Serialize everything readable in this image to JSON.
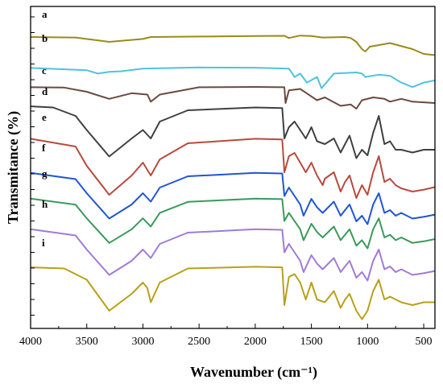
{
  "chart_data": {
    "type": "line",
    "title": "",
    "xlabel": "Wavenumber (cm⁻¹)",
    "ylabel": "Transmitance (%)",
    "xlim": [
      4000,
      400
    ],
    "x_reversed": true,
    "x_ticks": [
      "4000",
      "3500",
      "3000",
      "2500",
      "2000",
      "1500",
      "1000",
      "500"
    ],
    "y_tick_labels_shown": false,
    "stacked_offset": true,
    "grid": false,
    "series": [
      {
        "name": "a",
        "color": "#9a8a1a",
        "points": [
          [
            4000,
            0.8
          ],
          [
            3600,
            0.78
          ],
          [
            3300,
            0.6
          ],
          [
            3000,
            0.72
          ],
          [
            2930,
            0.8
          ],
          [
            2500,
            0.82
          ],
          [
            2000,
            0.84
          ],
          [
            1740,
            0.85
          ],
          [
            1700,
            0.76
          ],
          [
            1600,
            0.86
          ],
          [
            1500,
            0.84
          ],
          [
            1400,
            0.78
          ],
          [
            1200,
            0.8
          ],
          [
            1150,
            0.76
          ],
          [
            1100,
            0.6
          ],
          [
            1050,
            0.3
          ],
          [
            1020,
            0.2
          ],
          [
            980,
            0.4
          ],
          [
            800,
            0.55
          ],
          [
            600,
            0.3
          ],
          [
            500,
            0.1
          ],
          [
            400,
            0.05
          ]
        ]
      },
      {
        "name": "b",
        "color": "#4fc3dc",
        "points": [
          [
            4000,
            0.95
          ],
          [
            3500,
            0.85
          ],
          [
            3400,
            0.7
          ],
          [
            3300,
            0.78
          ],
          [
            3200,
            0.8
          ],
          [
            3000,
            0.92
          ],
          [
            2500,
            0.97
          ],
          [
            2000,
            0.96
          ],
          [
            1700,
            0.92
          ],
          [
            1650,
            0.55
          ],
          [
            1600,
            0.7
          ],
          [
            1540,
            0.3
          ],
          [
            1450,
            0.55
          ],
          [
            1410,
            0.05
          ],
          [
            1350,
            0.4
          ],
          [
            1300,
            0.7
          ],
          [
            1100,
            0.75
          ],
          [
            1050,
            0.7
          ],
          [
            1020,
            0.55
          ],
          [
            900,
            0.65
          ],
          [
            800,
            0.6
          ],
          [
            700,
            0.3
          ],
          [
            600,
            0.1
          ],
          [
            500,
            0.3
          ],
          [
            400,
            0.4
          ]
        ]
      },
      {
        "name": "c",
        "color": "#6b4a3e",
        "points": [
          [
            4000,
            0.96
          ],
          [
            3700,
            0.95
          ],
          [
            3500,
            0.8
          ],
          [
            3300,
            0.55
          ],
          [
            3100,
            0.75
          ],
          [
            2960,
            0.7
          ],
          [
            2930,
            0.45
          ],
          [
            2850,
            0.7
          ],
          [
            2500,
            0.96
          ],
          [
            2000,
            0.97
          ],
          [
            1740,
            0.96
          ],
          [
            1730,
            0.4
          ],
          [
            1700,
            0.85
          ],
          [
            1600,
            0.9
          ],
          [
            1450,
            0.5
          ],
          [
            1380,
            0.6
          ],
          [
            1240,
            0.3
          ],
          [
            1150,
            0.35
          ],
          [
            1100,
            0.2
          ],
          [
            1050,
            0.5
          ],
          [
            950,
            0.6
          ],
          [
            850,
            0.55
          ],
          [
            800,
            0.45
          ],
          [
            700,
            0.55
          ],
          [
            600,
            0.45
          ],
          [
            400,
            0.4
          ]
        ]
      },
      {
        "name": "d",
        "color": "#404040",
        "points": [
          [
            4000,
            0.97
          ],
          [
            3800,
            0.95
          ],
          [
            3600,
            0.8
          ],
          [
            3500,
            0.55
          ],
          [
            3300,
            0.08
          ],
          [
            3100,
            0.4
          ],
          [
            3000,
            0.55
          ],
          [
            2930,
            0.4
          ],
          [
            2850,
            0.7
          ],
          [
            2600,
            0.9
          ],
          [
            2000,
            0.95
          ],
          [
            1760,
            0.94
          ],
          [
            1740,
            0.4
          ],
          [
            1700,
            0.6
          ],
          [
            1650,
            0.7
          ],
          [
            1600,
            0.55
          ],
          [
            1550,
            0.4
          ],
          [
            1500,
            0.6
          ],
          [
            1450,
            0.35
          ],
          [
            1380,
            0.3
          ],
          [
            1300,
            0.4
          ],
          [
            1240,
            0.15
          ],
          [
            1200,
            0.3
          ],
          [
            1160,
            0.45
          ],
          [
            1100,
            0.05
          ],
          [
            1050,
            0.2
          ],
          [
            1000,
            0.1
          ],
          [
            950,
            0.5
          ],
          [
            900,
            0.8
          ],
          [
            850,
            0.3
          ],
          [
            800,
            0.35
          ],
          [
            750,
            0.2
          ],
          [
            700,
            0.2
          ],
          [
            600,
            0.15
          ],
          [
            500,
            0.2
          ],
          [
            400,
            0.2
          ]
        ]
      },
      {
        "name": "e",
        "color": "#b84a3e",
        "points": [
          [
            4000,
            0.97
          ],
          [
            3600,
            0.85
          ],
          [
            3500,
            0.55
          ],
          [
            3300,
            0.1
          ],
          [
            3100,
            0.4
          ],
          [
            3000,
            0.6
          ],
          [
            2930,
            0.4
          ],
          [
            2850,
            0.65
          ],
          [
            2600,
            0.9
          ],
          [
            2000,
            0.97
          ],
          [
            1760,
            0.96
          ],
          [
            1740,
            0.45
          ],
          [
            1700,
            0.7
          ],
          [
            1650,
            0.75
          ],
          [
            1600,
            0.6
          ],
          [
            1550,
            0.45
          ],
          [
            1500,
            0.6
          ],
          [
            1450,
            0.4
          ],
          [
            1400,
            0.25
          ],
          [
            1380,
            0.35
          ],
          [
            1300,
            0.45
          ],
          [
            1240,
            0.15
          ],
          [
            1200,
            0.3
          ],
          [
            1160,
            0.4
          ],
          [
            1100,
            0.05
          ],
          [
            1050,
            0.25
          ],
          [
            1000,
            0.1
          ],
          [
            950,
            0.45
          ],
          [
            900,
            0.7
          ],
          [
            850,
            0.3
          ],
          [
            800,
            0.35
          ],
          [
            750,
            0.25
          ],
          [
            700,
            0.2
          ],
          [
            600,
            0.15
          ],
          [
            500,
            0.18
          ],
          [
            400,
            0.22
          ]
        ]
      },
      {
        "name": "f",
        "color": "#1f55d4",
        "points": [
          [
            4000,
            0.96
          ],
          [
            3600,
            0.85
          ],
          [
            3500,
            0.6
          ],
          [
            3300,
            0.15
          ],
          [
            3100,
            0.4
          ],
          [
            3000,
            0.6
          ],
          [
            2930,
            0.45
          ],
          [
            2850,
            0.7
          ],
          [
            2600,
            0.9
          ],
          [
            2000,
            0.96
          ],
          [
            1760,
            0.95
          ],
          [
            1740,
            0.55
          ],
          [
            1700,
            0.7
          ],
          [
            1600,
            0.4
          ],
          [
            1570,
            0.2
          ],
          [
            1500,
            0.5
          ],
          [
            1450,
            0.35
          ],
          [
            1400,
            0.25
          ],
          [
            1300,
            0.45
          ],
          [
            1240,
            0.2
          ],
          [
            1200,
            0.3
          ],
          [
            1160,
            0.4
          ],
          [
            1100,
            0.1
          ],
          [
            1050,
            0.2
          ],
          [
            1000,
            0.05
          ],
          [
            950,
            0.4
          ],
          [
            900,
            0.6
          ],
          [
            850,
            0.25
          ],
          [
            800,
            0.3
          ],
          [
            750,
            0.2
          ],
          [
            700,
            0.25
          ],
          [
            600,
            0.15
          ],
          [
            500,
            0.18
          ],
          [
            400,
            0.22
          ]
        ]
      },
      {
        "name": "g",
        "color": "#3a9a5a",
        "points": [
          [
            4000,
            0.96
          ],
          [
            3600,
            0.85
          ],
          [
            3500,
            0.6
          ],
          [
            3300,
            0.15
          ],
          [
            3100,
            0.4
          ],
          [
            3000,
            0.6
          ],
          [
            2930,
            0.45
          ],
          [
            2850,
            0.7
          ],
          [
            2600,
            0.9
          ],
          [
            2000,
            0.96
          ],
          [
            1760,
            0.95
          ],
          [
            1740,
            0.55
          ],
          [
            1700,
            0.7
          ],
          [
            1600,
            0.4
          ],
          [
            1570,
            0.2
          ],
          [
            1500,
            0.5
          ],
          [
            1450,
            0.35
          ],
          [
            1400,
            0.25
          ],
          [
            1300,
            0.45
          ],
          [
            1240,
            0.2
          ],
          [
            1200,
            0.3
          ],
          [
            1160,
            0.4
          ],
          [
            1100,
            0.1
          ],
          [
            1050,
            0.2
          ],
          [
            1000,
            0.05
          ],
          [
            950,
            0.4
          ],
          [
            900,
            0.6
          ],
          [
            850,
            0.25
          ],
          [
            800,
            0.3
          ],
          [
            750,
            0.2
          ],
          [
            700,
            0.25
          ],
          [
            600,
            0.15
          ],
          [
            500,
            0.18
          ],
          [
            400,
            0.22
          ]
        ]
      },
      {
        "name": "h",
        "color": "#a07ad8",
        "points": [
          [
            4000,
            0.96
          ],
          [
            3600,
            0.85
          ],
          [
            3500,
            0.6
          ],
          [
            3300,
            0.15
          ],
          [
            3100,
            0.4
          ],
          [
            3000,
            0.6
          ],
          [
            2930,
            0.45
          ],
          [
            2850,
            0.7
          ],
          [
            2600,
            0.9
          ],
          [
            2000,
            0.96
          ],
          [
            1760,
            0.95
          ],
          [
            1740,
            0.55
          ],
          [
            1700,
            0.7
          ],
          [
            1600,
            0.4
          ],
          [
            1570,
            0.2
          ],
          [
            1500,
            0.5
          ],
          [
            1450,
            0.35
          ],
          [
            1400,
            0.25
          ],
          [
            1300,
            0.45
          ],
          [
            1240,
            0.2
          ],
          [
            1200,
            0.3
          ],
          [
            1160,
            0.4
          ],
          [
            1100,
            0.1
          ],
          [
            1050,
            0.2
          ],
          [
            1000,
            0.05
          ],
          [
            950,
            0.4
          ],
          [
            900,
            0.6
          ],
          [
            850,
            0.25
          ],
          [
            800,
            0.3
          ],
          [
            750,
            0.2
          ],
          [
            700,
            0.25
          ],
          [
            600,
            0.15
          ],
          [
            500,
            0.18
          ],
          [
            400,
            0.22
          ]
        ]
      },
      {
        "name": "i",
        "color": "#b8a01a",
        "points": [
          [
            4000,
            0.97
          ],
          [
            3700,
            0.95
          ],
          [
            3500,
            0.75
          ],
          [
            3300,
            0.2
          ],
          [
            3100,
            0.5
          ],
          [
            3000,
            0.7
          ],
          [
            2960,
            0.6
          ],
          [
            2930,
            0.35
          ],
          [
            2850,
            0.7
          ],
          [
            2600,
            0.95
          ],
          [
            2000,
            0.98
          ],
          [
            1760,
            0.97
          ],
          [
            1740,
            0.3
          ],
          [
            1700,
            0.8
          ],
          [
            1650,
            0.85
          ],
          [
            1600,
            0.7
          ],
          [
            1550,
            0.4
          ],
          [
            1500,
            0.7
          ],
          [
            1450,
            0.4
          ],
          [
            1380,
            0.35
          ],
          [
            1300,
            0.55
          ],
          [
            1240,
            0.25
          ],
          [
            1200,
            0.4
          ],
          [
            1160,
            0.5
          ],
          [
            1100,
            0.2
          ],
          [
            1050,
            0.05
          ],
          [
            1000,
            0.2
          ],
          [
            950,
            0.55
          ],
          [
            900,
            0.75
          ],
          [
            850,
            0.4
          ],
          [
            800,
            0.45
          ],
          [
            750,
            0.4
          ],
          [
            700,
            0.35
          ],
          [
            600,
            0.3
          ],
          [
            500,
            0.35
          ],
          [
            400,
            0.35
          ]
        ]
      }
    ]
  }
}
